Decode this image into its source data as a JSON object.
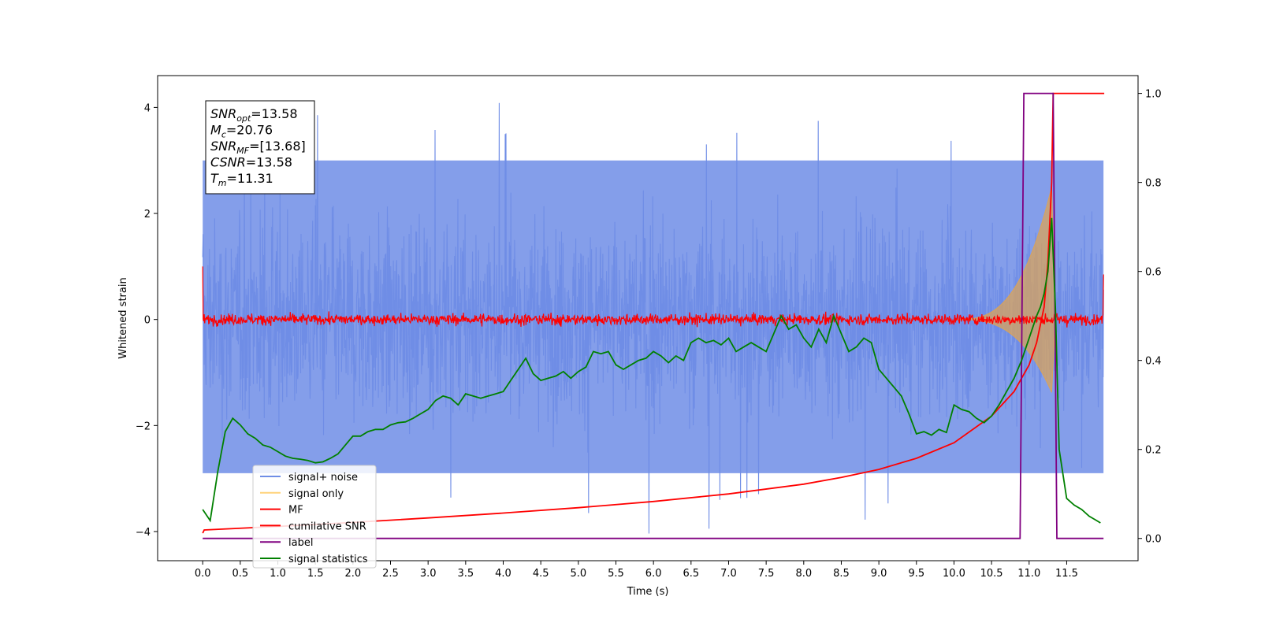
{
  "chart_data": {
    "type": "line",
    "title": "",
    "xlabel": "Time (s)",
    "ylabel": "Whitened strain",
    "ylabel_right": "",
    "xlim": [
      -0.6,
      12.45
    ],
    "ylim": [
      -4.55,
      4.6
    ],
    "ylim_right": [
      -0.05,
      1.04
    ],
    "x_ticks": [
      0.0,
      0.5,
      1.0,
      1.5,
      2.0,
      2.5,
      3.0,
      3.5,
      4.0,
      4.5,
      5.0,
      5.5,
      6.0,
      6.5,
      7.0,
      7.5,
      8.0,
      8.5,
      9.0,
      9.5,
      10.0,
      10.5,
      11.0,
      11.5
    ],
    "x_tick_labels": [
      "0.0",
      "0.5",
      "1.0",
      "1.5",
      "2.0",
      "2.5",
      "3.0",
      "3.5",
      "4.0",
      "4.5",
      "5.0",
      "5.5",
      "6.0",
      "6.5",
      "7.0",
      "7.5",
      "8.0",
      "8.5",
      "9.0",
      "9.5",
      "10.0",
      "10.5",
      "11.0",
      "11.5"
    ],
    "y_ticks": [
      -4,
      -2,
      0,
      2,
      4
    ],
    "y_tick_labels": [
      "−4",
      "−2",
      "0",
      "2",
      "4"
    ],
    "y_ticks_right": [
      0.0,
      0.2,
      0.4,
      0.6,
      0.8,
      1.0
    ],
    "y_tick_labels_right": [
      "0.0",
      "0.2",
      "0.4",
      "0.6",
      "0.8",
      "1.0"
    ],
    "grid": false,
    "legend_position": "lower-left",
    "legend": [
      {
        "name": "signal+ noise",
        "color": "#6f8de6"
      },
      {
        "name": "signal only",
        "color": "#ffd27a"
      },
      {
        "name": "MF",
        "color": "#ff0000"
      },
      {
        "name": "cumilative SNR",
        "color": "#ff0000"
      },
      {
        "name": "label",
        "color": "#800080"
      },
      {
        "name": "signal statistics",
        "color": "#008000"
      }
    ],
    "annotation": {
      "lines": [
        {
          "base": "SNR",
          "sub": "opt",
          "rest": "=13.58"
        },
        {
          "base": "M",
          "sub": "c",
          "rest": "=20.76"
        },
        {
          "base": "SNR",
          "sub": "MF",
          "rest": "=[13.68]"
        },
        {
          "base": "CSNR",
          "sub": "",
          "rest": "=13.58"
        },
        {
          "base": "T",
          "sub": "m",
          "rest": "=11.31"
        }
      ]
    },
    "series": [
      {
        "name": "signal+ noise",
        "axis": "left",
        "color": "#6f8de6",
        "t_range": [
          0.0,
          11.99
        ],
        "envelope_upper": 3.0,
        "envelope_lower": -2.9,
        "peak_max": 4.2,
        "peak_min": -4.1
      },
      {
        "name": "signal only",
        "axis": "left",
        "color": "#d9a35a",
        "chirp_start": 10.0,
        "chirp_peak_time": 11.3,
        "peak_amplitude": 2.5
      },
      {
        "name": "MF",
        "axis": "left",
        "color": "#ff0000",
        "t_range": [
          0.0,
          11.99
        ],
        "baseline": 0.0,
        "band": 0.12,
        "start_value": 1.0,
        "end_value": 0.85
      },
      {
        "name": "cumilative SNR",
        "axis": "right",
        "color": "#ff0000",
        "x": [
          0.0,
          0.02,
          1.0,
          2.0,
          3.0,
          4.0,
          5.0,
          6.0,
          7.0,
          8.0,
          8.5,
          9.0,
          9.5,
          10.0,
          10.5,
          10.8,
          11.0,
          11.1,
          11.2,
          11.25,
          11.3,
          11.32,
          12.0
        ],
        "y": [
          0.012,
          0.019,
          0.027,
          0.036,
          0.046,
          0.057,
          0.069,
          0.083,
          0.1,
          0.122,
          0.137,
          0.155,
          0.18,
          0.215,
          0.275,
          0.33,
          0.39,
          0.44,
          0.52,
          0.62,
          0.8,
          1.0,
          1.0
        ]
      },
      {
        "name": "label",
        "axis": "right",
        "color": "#800080",
        "x": [
          0.0,
          10.88,
          10.93,
          11.32,
          11.37,
          11.99
        ],
        "y": [
          0.0,
          0.0,
          1.0,
          1.0,
          0.0,
          0.0
        ]
      },
      {
        "name": "signal statistics",
        "axis": "right",
        "color": "#008000",
        "x": [
          0.0,
          0.1,
          0.2,
          0.3,
          0.4,
          0.5,
          0.6,
          0.7,
          0.8,
          0.9,
          1.0,
          1.1,
          1.2,
          1.3,
          1.4,
          1.5,
          1.6,
          1.7,
          1.8,
          1.9,
          2.0,
          2.1,
          2.2,
          2.3,
          2.4,
          2.5,
          2.6,
          2.7,
          2.8,
          2.9,
          3.0,
          3.1,
          3.2,
          3.3,
          3.4,
          3.5,
          3.6,
          3.7,
          3.8,
          3.9,
          4.0,
          4.1,
          4.2,
          4.3,
          4.4,
          4.5,
          4.6,
          4.7,
          4.8,
          4.9,
          5.0,
          5.1,
          5.2,
          5.3,
          5.4,
          5.5,
          5.6,
          5.7,
          5.8,
          5.9,
          6.0,
          6.1,
          6.2,
          6.3,
          6.4,
          6.5,
          6.6,
          6.7,
          6.8,
          6.9,
          7.0,
          7.1,
          7.2,
          7.3,
          7.4,
          7.5,
          7.6,
          7.7,
          7.8,
          7.9,
          8.0,
          8.1,
          8.2,
          8.3,
          8.4,
          8.5,
          8.6,
          8.7,
          8.8,
          8.9,
          9.0,
          9.1,
          9.2,
          9.3,
          9.4,
          9.5,
          9.6,
          9.7,
          9.8,
          9.9,
          10.0,
          10.1,
          10.2,
          10.3,
          10.4,
          10.5,
          10.6,
          10.7,
          10.8,
          10.9,
          11.0,
          11.1,
          11.15,
          11.2,
          11.25,
          11.3,
          11.35,
          11.4,
          11.5,
          11.6,
          11.7,
          11.8,
          11.9,
          11.95
        ],
        "y": [
          0.065,
          0.04,
          0.15,
          0.24,
          0.27,
          0.255,
          0.235,
          0.225,
          0.21,
          0.205,
          0.195,
          0.185,
          0.18,
          0.178,
          0.175,
          0.17,
          0.172,
          0.18,
          0.19,
          0.21,
          0.23,
          0.23,
          0.24,
          0.245,
          0.245,
          0.255,
          0.26,
          0.262,
          0.27,
          0.28,
          0.29,
          0.31,
          0.32,
          0.315,
          0.3,
          0.325,
          0.32,
          0.315,
          0.32,
          0.325,
          0.33,
          0.355,
          0.38,
          0.405,
          0.37,
          0.355,
          0.36,
          0.365,
          0.375,
          0.36,
          0.375,
          0.385,
          0.42,
          0.415,
          0.42,
          0.39,
          0.38,
          0.39,
          0.4,
          0.405,
          0.42,
          0.41,
          0.395,
          0.41,
          0.4,
          0.44,
          0.45,
          0.44,
          0.445,
          0.435,
          0.45,
          0.42,
          0.43,
          0.44,
          0.43,
          0.42,
          0.46,
          0.5,
          0.47,
          0.48,
          0.45,
          0.43,
          0.47,
          0.44,
          0.5,
          0.46,
          0.42,
          0.43,
          0.45,
          0.44,
          0.38,
          0.36,
          0.34,
          0.32,
          0.28,
          0.235,
          0.24,
          0.232,
          0.245,
          0.238,
          0.3,
          0.29,
          0.285,
          0.27,
          0.26,
          0.275,
          0.3,
          0.33,
          0.36,
          0.4,
          0.45,
          0.5,
          0.52,
          0.55,
          0.6,
          0.72,
          0.52,
          0.2,
          0.09,
          0.075,
          0.065,
          0.05,
          0.04,
          0.035
        ]
      }
    ]
  }
}
